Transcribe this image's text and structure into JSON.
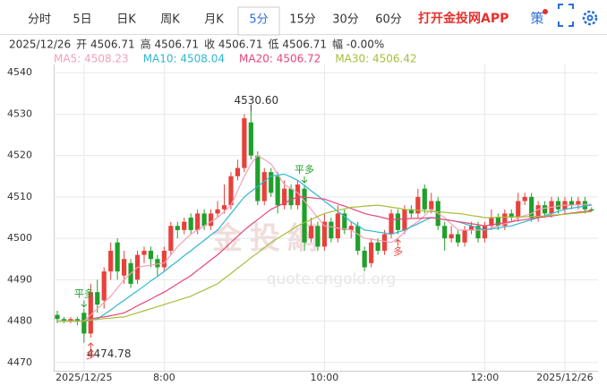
{
  "tabs": [
    "分时",
    "5日",
    "日K",
    "周K",
    "月K",
    "5分",
    "15分",
    "30分",
    "60分"
  ],
  "active_tab": 5,
  "app_link": "打开金投网APP",
  "strategy_icon": "策",
  "info": [
    "2025/12/26",
    "开 4506.71",
    "高 4506.71",
    "收 4506.71",
    "低 4506.71",
    "幅 -0.00%"
  ],
  "watermark": [
    "金投網",
    "quote.cngold.org"
  ],
  "chart_data": {
    "type": "candlestick",
    "categories": [
      null,
      null,
      null,
      null,
      "2025/12/25",
      null,
      null,
      null,
      null,
      null,
      null,
      null,
      null,
      null,
      null,
      null,
      "8:00",
      null,
      null,
      null,
      null,
      null,
      null,
      null,
      null,
      null,
      null,
      null,
      null,
      null,
      null,
      null,
      null,
      null,
      null,
      null,
      null,
      null,
      null,
      null,
      "10:00",
      null,
      null,
      null,
      null,
      null,
      null,
      null,
      null,
      null,
      null,
      null,
      null,
      null,
      null,
      null,
      null,
      null,
      null,
      null,
      null,
      null,
      null,
      null,
      "12:00",
      null,
      null,
      null,
      null,
      null,
      null,
      null,
      null,
      null,
      null,
      null,
      "2025/12/26",
      null,
      null,
      null,
      null
    ],
    "open": [
      4481.5,
      4480.5,
      4480,
      4480.5,
      4482,
      4477,
      4487,
      4485,
      4492,
      4499,
      4491,
      4494,
      4490,
      4496,
      4497,
      4495,
      4493,
      4497,
      4503,
      4502,
      4505,
      4502,
      4506,
      4503,
      4506,
      4507,
      4508,
      4515,
      4517,
      4528,
      4520,
      4509,
      4516,
      4515,
      4508,
      4512,
      4508,
      4512,
      4500,
      4503,
      4498,
      4504,
      4500,
      4506,
      4502,
      4503,
      4497,
      4494,
      4499,
      4497,
      4501,
      4506,
      4502,
      4507,
      4506,
      4512,
      4507,
      4509,
      4503,
      4500,
      4501,
      4499,
      4502,
      4503,
      4500,
      4503,
      4505,
      4503,
      4506,
      4505,
      4509,
      4510,
      4505,
      4508,
      4506,
      4509,
      4507,
      4509,
      4508,
      4509,
      4507
    ],
    "high": [
      4482.5,
      4481,
      4481,
      4481,
      4483,
      4489,
      4490,
      4493,
      4499,
      4500,
      4497,
      4495,
      4497,
      4498,
      4498,
      4496,
      4498,
      4504,
      4504,
      4505,
      4506,
      4507,
      4507,
      4507,
      4509,
      4513,
      4516,
      4519,
      4530,
      4530.6,
      4521,
      4517,
      4517,
      4516,
      4514,
      4513,
      4514,
      4513,
      4505,
      4504,
      4506,
      4505,
      4508,
      4507,
      4504,
      4504,
      4498,
      4500,
      4500,
      4502,
      4507,
      4507,
      4508,
      4508,
      4512,
      4513,
      4511,
      4510,
      4504,
      4503,
      4502,
      4503,
      4504,
      4504,
      4504,
      4507,
      4506,
      4507,
      4507,
      4511,
      4511,
      4511,
      4509,
      4509,
      4510,
      4510,
      4510,
      4510,
      4510,
      4510,
      4507.5
    ],
    "low": [
      4479.5,
      4479.5,
      4479.5,
      4479,
      4474.78,
      4476,
      4482,
      4483,
      4490,
      4490,
      4489,
      4488,
      4489,
      4494,
      4493,
      4491,
      4492,
      4496,
      4500,
      4501,
      4501,
      4501,
      4502,
      4502,
      4505,
      4506,
      4507,
      4514,
      4516,
      4519,
      4508,
      4508,
      4510,
      4506,
      4507,
      4507,
      4507,
      4497,
      4499,
      4497,
      4497,
      4499,
      4499,
      4501,
      4500,
      4496,
      4492,
      4493,
      4496,
      4496,
      4500,
      4501,
      4501,
      4505,
      4505,
      4506,
      4506,
      4502,
      4497,
      4499,
      4498,
      4498,
      4501,
      4499,
      4499,
      4502,
      4502,
      4502,
      4504,
      4504,
      4508,
      4504,
      4504,
      4505,
      4505,
      4506,
      4506,
      4507,
      4507,
      4506,
      4506.5
    ],
    "close": [
      4480.5,
      4480,
      4480.5,
      4480,
      4477,
      4487,
      4484,
      4492,
      4497,
      4492,
      4495,
      4489,
      4496,
      4497,
      4495,
      4493,
      4497,
      4503,
      4502,
      4504,
      4502,
      4506,
      4503,
      4506,
      4507,
      4508,
      4515,
      4517,
      4529,
      4520,
      4509,
      4516,
      4511,
      4508,
      4512,
      4508,
      4513,
      4499,
      4503,
      4498,
      4504,
      4500,
      4506,
      4502,
      4503,
      4497,
      4493,
      4499,
      4497,
      4501,
      4506,
      4502,
      4507,
      4506,
      4510,
      4507,
      4509,
      4503,
      4500,
      4501,
      4499,
      4502,
      4503,
      4500,
      4503,
      4505,
      4503,
      4506,
      4505,
      4509,
      4510,
      4505,
      4508,
      4506,
      4509,
      4507,
      4509,
      4508,
      4509,
      4507,
      4506.71
    ],
    "up_color": "#e8413b",
    "down_color": "#1fa02a",
    "series": [
      {
        "legend": "MA5: 4508.23",
        "color": "#f3a1b8",
        "values": [
          4480,
          4480,
          4480,
          4480,
          4480,
          4481.5,
          4483,
          4484.5,
          4486,
          4488,
          4490,
          4491.5,
          4493,
          4493.3,
          4493.5,
          4493.8,
          4494,
          4496,
          4498,
          4499.5,
          4501,
          4502,
          4503,
          4504,
          4505,
          4506.5,
          4508,
          4511.5,
          4515,
          4518,
          4520,
          4519,
          4518,
          4515.5,
          4513,
          4512,
          4511,
          4509,
          4507,
          4505,
          4503,
          4502.8,
          4502.5,
          4502.3,
          4502,
          4501,
          4500,
          4499.8,
          4499.5,
          4499.3,
          4499,
          4500,
          4501.5,
          4503,
          4504,
          4505.5,
          4507,
          4506,
          4505,
          4503.5,
          4502,
          4502,
          4502,
          4502,
          4502,
          4502.5,
          4503,
          4503.5,
          4504,
          4505,
          4505.5,
          4506,
          4507,
          4507.3,
          4507.5,
          4507.8,
          4508,
          4508,
          4508.1,
          4508.2,
          4508.23
        ]
      },
      {
        "legend": "MA10: 4508.04",
        "color": "#2fb8d0",
        "values": [
          4480,
          4480,
          4480,
          4480,
          4480,
          4480.2,
          4480.5,
          4481.6,
          4482.7,
          4483.9,
          4485,
          4486.2,
          4487.3,
          4488.5,
          4489.7,
          4490.8,
          4492,
          4493.3,
          4494.5,
          4495.8,
          4497,
          4498.3,
          4499.5,
          4500.8,
          4502,
          4504,
          4506,
          4508,
          4510,
          4511.3,
          4512.5,
          4513.8,
          4515,
          4515.3,
          4515.5,
          4514.8,
          4514,
          4512.8,
          4511.5,
          4510.3,
          4509,
          4507.8,
          4506.5,
          4505.3,
          4504,
          4503,
          4502,
          4501.8,
          4501.5,
          4501.3,
          4501,
          4501.5,
          4502,
          4502.8,
          4503.5,
          4504.3,
          4505,
          4504.8,
          4504.5,
          4504.3,
          4504,
          4503.5,
          4503,
          4502.5,
          4502,
          4502.3,
          4502.5,
          4502.8,
          4503,
          4503.5,
          4504,
          4504.5,
          4505,
          4505.5,
          4506,
          4506.5,
          4507,
          4507.3,
          4507.5,
          4507.8,
          4508.04
        ]
      },
      {
        "legend": "MA20: 4506.72",
        "color": "#e6457c",
        "values": [
          4480,
          4480,
          4480,
          4480,
          4480,
          4480.5,
          4480.8,
          4481,
          4481.3,
          4481.6,
          4482,
          4482.8,
          4483.7,
          4484.5,
          4485.3,
          4486.2,
          4487,
          4488,
          4489,
          4490,
          4491,
          4492.3,
          4493.5,
          4494.8,
          4496,
          4497.5,
          4499,
          4500.5,
          4502,
          4503.3,
          4504.5,
          4505.8,
          4507,
          4507.8,
          4508.5,
          4509.3,
          4510,
          4509.9,
          4509.8,
          4509.6,
          4509.5,
          4508.9,
          4508.3,
          4507.8,
          4507.2,
          4506.6,
          4506,
          4505.6,
          4505.3,
          4504.9,
          4504.5,
          4504.6,
          4504.7,
          4504.8,
          4504.8,
          4504.9,
          4505,
          4504.8,
          4504.5,
          4504.3,
          4504,
          4503.8,
          4503.5,
          4503.3,
          4503,
          4503.3,
          4503.5,
          4503.8,
          4504,
          4504.3,
          4504.5,
          4504.8,
          4505,
          4505.2,
          4505.4,
          4505.6,
          4505.9,
          4506.1,
          4506.3,
          4506.5,
          4506.72
        ]
      },
      {
        "legend": "MA30: 4506.42",
        "color": "#a3c03a",
        "values": [
          4480,
          4480,
          4480,
          4480,
          4480,
          4480.3,
          4480.4,
          4480.6,
          4480.7,
          4480.9,
          4481,
          4481.5,
          4482,
          4482.5,
          4483,
          4483.5,
          4484,
          4484.5,
          4485,
          4485.5,
          4486,
          4486.8,
          4487.5,
          4488.3,
          4489,
          4490.3,
          4491.5,
          4492.8,
          4494,
          4495.3,
          4496.5,
          4497.8,
          4499,
          4500,
          4501,
          4502,
          4503,
          4503.8,
          4504.5,
          4505.3,
          4506,
          4506.4,
          4506.8,
          4507.1,
          4507.5,
          4507.6,
          4507.8,
          4507.9,
          4508,
          4507.8,
          4507.5,
          4507.3,
          4507,
          4506.9,
          4506.8,
          4506.6,
          4506.5,
          4506.4,
          4506.3,
          4506.1,
          4506,
          4505.8,
          4505.5,
          4505.3,
          4505,
          4505,
          4505.1,
          4505.1,
          4505.2,
          4505.2,
          4505.2,
          4505.3,
          4505.3,
          4505.4,
          4505.6,
          4505.7,
          4505.8,
          4506,
          4506.1,
          4506.3,
          4506.42
        ]
      }
    ],
    "max_label": {
      "value": 4530.6,
      "label": "4530.60"
    },
    "min_label": {
      "value": 4474.78,
      "label": "4474.78"
    },
    "signals": [
      {
        "label": "平多",
        "at": 4,
        "color": "#1fa02a",
        "place": "above"
      },
      {
        "label": "多",
        "at": 5,
        "color": "#e8413b",
        "place": "below"
      },
      {
        "label": "平多",
        "at": 37,
        "color": "#1fa02a",
        "place": "above"
      },
      {
        "label": "多",
        "at": 51,
        "color": "#e8413b",
        "place": "below"
      }
    ],
    "ylim": [
      4468,
      4542
    ],
    "yticks": [
      4470,
      4480,
      4490,
      4500,
      4510,
      4520,
      4530,
      4540
    ],
    "grid": true
  }
}
